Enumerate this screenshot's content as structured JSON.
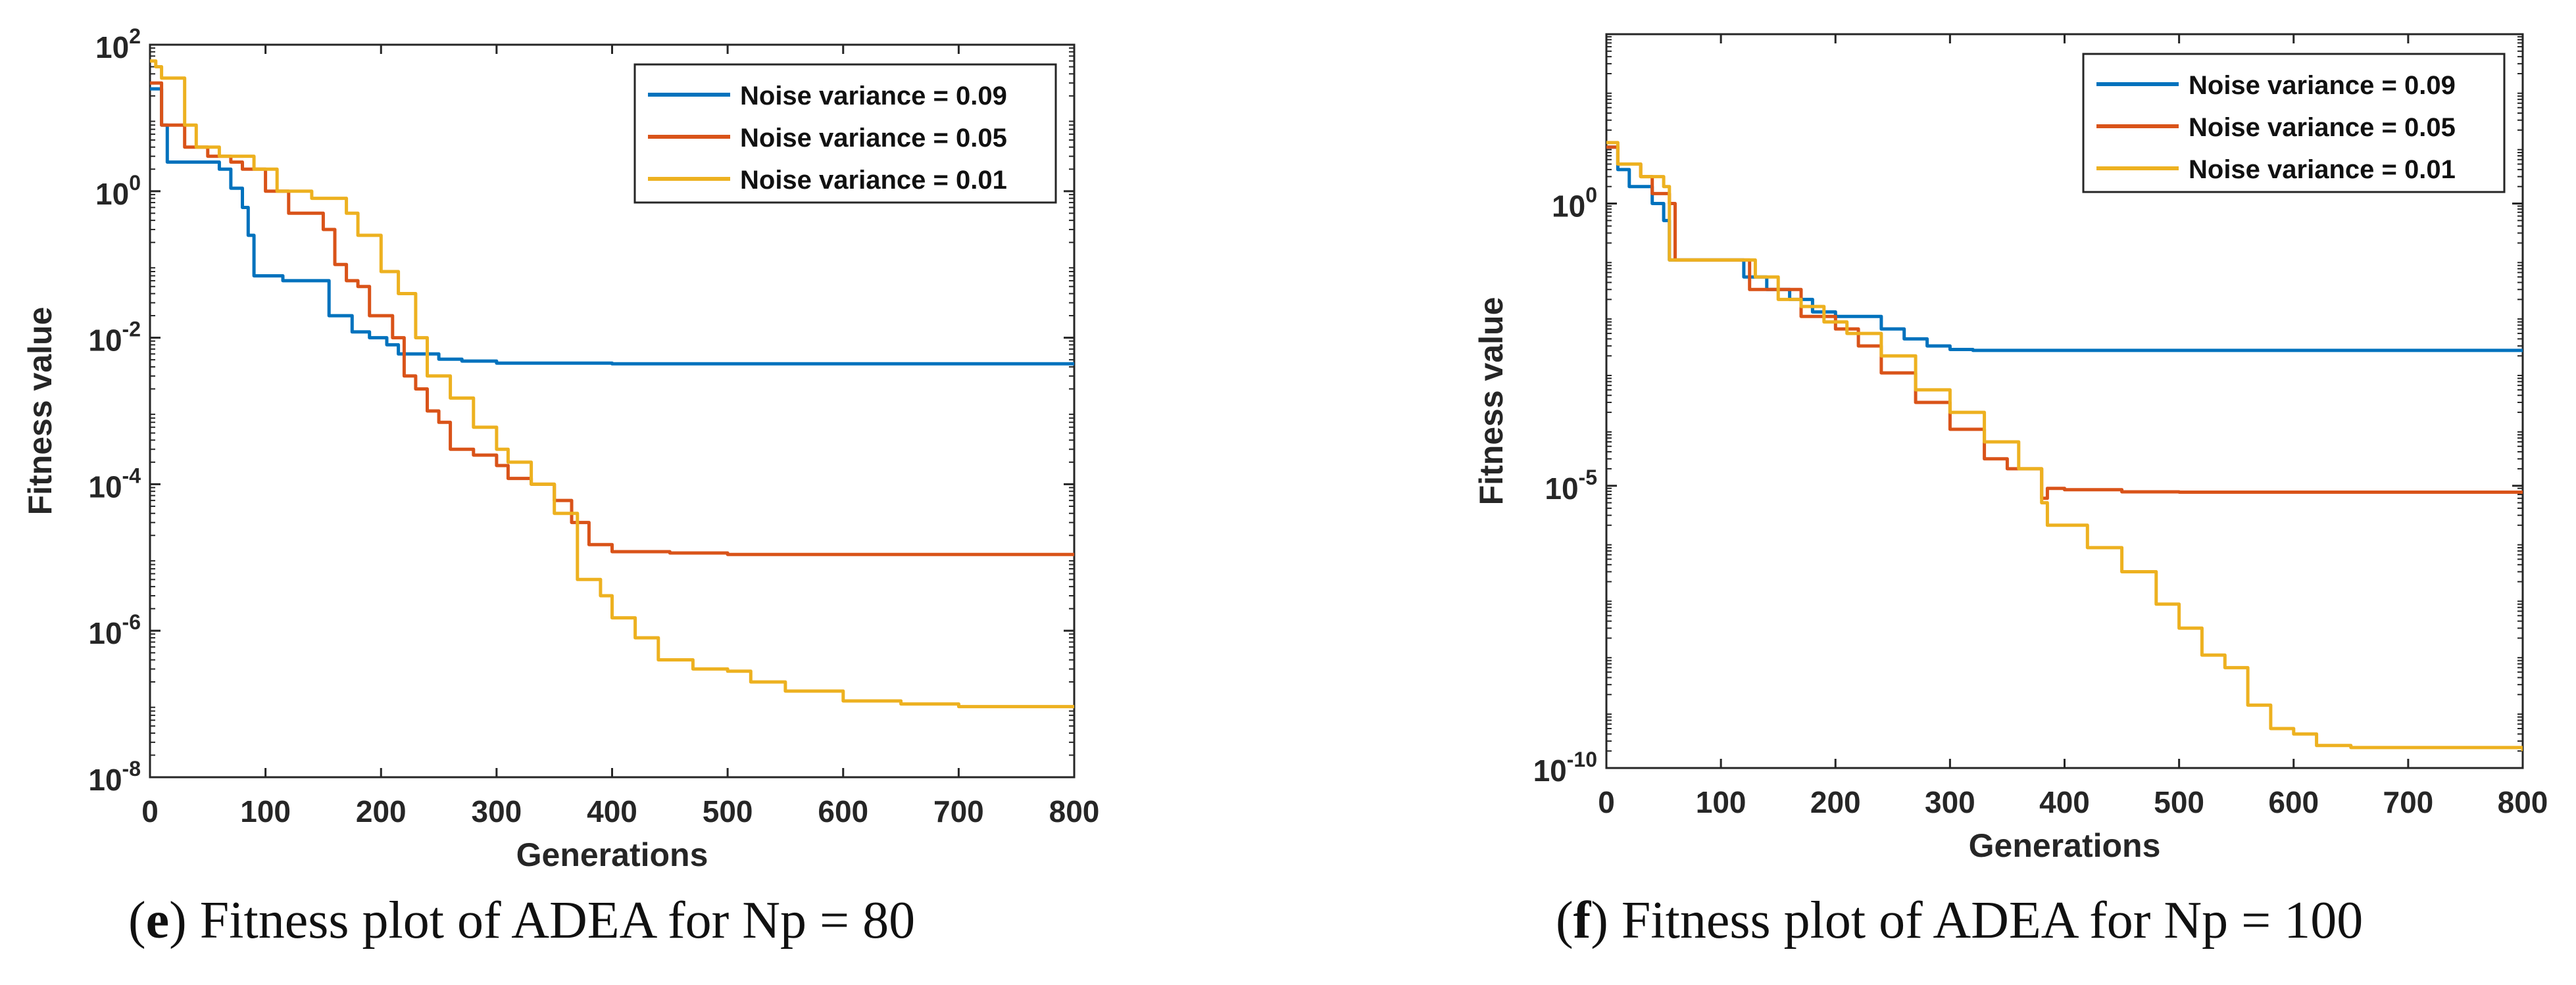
{
  "colors": {
    "s1": "#0072BD",
    "s2": "#D95319",
    "s3": "#EDB120"
  },
  "chart_data": [
    {
      "type": "line",
      "yscale": "log",
      "xlabel": "Generations",
      "ylabel": "Fitness value",
      "xlim": [
        0,
        800
      ],
      "ylim": [
        1e-08,
        100
      ],
      "xticks": [
        "0",
        "100",
        "200",
        "300",
        "400",
        "500",
        "600",
        "700",
        "800"
      ],
      "yticks": [
        {
          "base": "10",
          "exp": "2"
        },
        {
          "base": "10",
          "exp": "0"
        },
        {
          "base": "10",
          "exp": "-2"
        },
        {
          "base": "10",
          "exp": "-4"
        },
        {
          "base": "10",
          "exp": "-6"
        },
        {
          "base": "10",
          "exp": "-8"
        }
      ],
      "legend_position": "top-right",
      "series": [
        {
          "name": "Noise variance = 0.09",
          "color": "#0072BD",
          "points": [
            [
              0,
              25
            ],
            [
              5,
              25
            ],
            [
              10,
              8
            ],
            [
              15,
              2.5
            ],
            [
              60,
              2
            ],
            [
              70,
              1.1
            ],
            [
              80,
              0.6
            ],
            [
              85,
              0.25
            ],
            [
              90,
              0.07
            ],
            [
              110,
              0.07
            ],
            [
              115,
              0.06
            ],
            [
              150,
              0.06
            ],
            [
              155,
              0.02
            ],
            [
              170,
              0.02
            ],
            [
              175,
              0.012
            ],
            [
              190,
              0.01
            ],
            [
              205,
              0.008
            ],
            [
              215,
              0.006
            ],
            [
              230,
              0.006
            ],
            [
              250,
              0.0051
            ],
            [
              270,
              0.0048
            ],
            [
              300,
              0.0045
            ],
            [
              400,
              0.0044
            ],
            [
              800,
              0.0044
            ]
          ]
        },
        {
          "name": "Noise variance = 0.05",
          "color": "#D95319",
          "points": [
            [
              0,
              30
            ],
            [
              5,
              30
            ],
            [
              10,
              8
            ],
            [
              30,
              4
            ],
            [
              50,
              3
            ],
            [
              70,
              2.5
            ],
            [
              80,
              2
            ],
            [
              100,
              1
            ],
            [
              120,
              0.5
            ],
            [
              150,
              0.3
            ],
            [
              160,
              0.1
            ],
            [
              170,
              0.06
            ],
            [
              180,
              0.05
            ],
            [
              190,
              0.02
            ],
            [
              210,
              0.01
            ],
            [
              220,
              0.003
            ],
            [
              230,
              0.002
            ],
            [
              240,
              0.001
            ],
            [
              250,
              0.0007
            ],
            [
              260,
              0.0003
            ],
            [
              280,
              0.00025
            ],
            [
              300,
              0.00018
            ],
            [
              310,
              0.00012
            ],
            [
              330,
              0.0001
            ],
            [
              350,
              6e-05
            ],
            [
              365,
              3e-05
            ],
            [
              380,
              1.5e-05
            ],
            [
              400,
              1.2e-05
            ],
            [
              450,
              1.15e-05
            ],
            [
              500,
              1.1e-05
            ],
            [
              800,
              1.1e-05
            ]
          ]
        },
        {
          "name": "Noise variance = 0.01",
          "color": "#EDB120",
          "points": [
            [
              0,
              60
            ],
            [
              5,
              50
            ],
            [
              10,
              35
            ],
            [
              30,
              8
            ],
            [
              40,
              4
            ],
            [
              60,
              3
            ],
            [
              90,
              2
            ],
            [
              110,
              1
            ],
            [
              140,
              0.8
            ],
            [
              160,
              0.8
            ],
            [
              170,
              0.5
            ],
            [
              180,
              0.25
            ],
            [
              200,
              0.08
            ],
            [
              215,
              0.04
            ],
            [
              230,
              0.01
            ],
            [
              240,
              0.003
            ],
            [
              260,
              0.0015
            ],
            [
              280,
              0.0006
            ],
            [
              300,
              0.0003
            ],
            [
              310,
              0.0002
            ],
            [
              330,
              0.0001
            ],
            [
              350,
              4e-05
            ],
            [
              370,
              5e-06
            ],
            [
              390,
              3e-06
            ],
            [
              400,
              1.5e-06
            ],
            [
              420,
              8e-07
            ],
            [
              440,
              4e-07
            ],
            [
              470,
              3e-07
            ],
            [
              500,
              2.8e-07
            ],
            [
              520,
              2e-07
            ],
            [
              550,
              1.5e-07
            ],
            [
              600,
              1.1e-07
            ],
            [
              650,
              1e-07
            ],
            [
              700,
              9.2e-08
            ],
            [
              800,
              9e-08
            ]
          ]
        }
      ]
    },
    {
      "type": "line",
      "yscale": "log",
      "xlabel": "Generations",
      "ylabel": "Fitness value",
      "xlim": [
        0,
        800
      ],
      "ylim": [
        1e-10,
        1000
      ],
      "xticks": [
        "0",
        "100",
        "200",
        "300",
        "400",
        "500",
        "600",
        "700",
        "800"
      ],
      "yticks": [
        {
          "base": "10",
          "exp": "0"
        },
        {
          "base": "10",
          "exp": "-5"
        },
        {
          "base": "10",
          "exp": "-10"
        }
      ],
      "legend_position": "top-right",
      "series": [
        {
          "name": "Noise variance = 0.09",
          "color": "#0072BD",
          "points": [
            [
              0,
              10
            ],
            [
              10,
              4
            ],
            [
              20,
              2
            ],
            [
              40,
              1
            ],
            [
              50,
              0.5
            ],
            [
              55,
              0.1
            ],
            [
              100,
              0.1
            ],
            [
              120,
              0.05
            ],
            [
              140,
              0.03
            ],
            [
              160,
              0.02
            ],
            [
              180,
              0.012
            ],
            [
              200,
              0.01
            ],
            [
              220,
              0.01
            ],
            [
              240,
              0.006
            ],
            [
              260,
              0.004
            ],
            [
              280,
              0.003
            ],
            [
              300,
              0.0026
            ],
            [
              320,
              0.0025
            ],
            [
              800,
              0.0025
            ]
          ]
        },
        {
          "name": "Noise variance = 0.05",
          "color": "#D95319",
          "points": [
            [
              0,
              10
            ],
            [
              10,
              5
            ],
            [
              30,
              3
            ],
            [
              40,
              1.5
            ],
            [
              55,
              1
            ],
            [
              60,
              0.1
            ],
            [
              110,
              0.1
            ],
            [
              125,
              0.03
            ],
            [
              160,
              0.03
            ],
            [
              170,
              0.01
            ],
            [
              200,
              0.006
            ],
            [
              220,
              0.003
            ],
            [
              240,
              0.001
            ],
            [
              270,
              0.0003
            ],
            [
              300,
              0.0001
            ],
            [
              330,
              3e-05
            ],
            [
              350,
              2e-05
            ],
            [
              380,
              6e-06
            ],
            [
              385,
              9e-06
            ],
            [
              400,
              8.5e-06
            ],
            [
              450,
              7.8e-06
            ],
            [
              500,
              7.7e-06
            ],
            [
              800,
              7.7e-06
            ]
          ]
        },
        {
          "name": "Noise variance = 0.01",
          "color": "#EDB120",
          "points": [
            [
              0,
              12
            ],
            [
              10,
              5
            ],
            [
              30,
              3
            ],
            [
              50,
              2
            ],
            [
              55,
              0.1
            ],
            [
              110,
              0.1
            ],
            [
              130,
              0.05
            ],
            [
              150,
              0.02
            ],
            [
              170,
              0.015
            ],
            [
              190,
              0.008
            ],
            [
              210,
              0.005
            ],
            [
              240,
              0.002
            ],
            [
              270,
              0.0005
            ],
            [
              300,
              0.0002
            ],
            [
              330,
              6e-05
            ],
            [
              360,
              2e-05
            ],
            [
              380,
              5e-06
            ],
            [
              385,
              2e-06
            ],
            [
              400,
              2e-06
            ],
            [
              420,
              8e-07
            ],
            [
              450,
              3e-07
            ],
            [
              480,
              8e-08
            ],
            [
              500,
              3e-08
            ],
            [
              520,
              1e-08
            ],
            [
              540,
              6e-09
            ],
            [
              560,
              1.3e-09
            ],
            [
              580,
              5e-10
            ],
            [
              600,
              4e-10
            ],
            [
              620,
              2.5e-10
            ],
            [
              650,
              2.3e-10
            ],
            [
              800,
              2e-10
            ]
          ]
        }
      ]
    }
  ],
  "captions": [
    {
      "letter": "e",
      "text": ") Fitness plot of ADEA for Np = 80",
      "open": "("
    },
    {
      "letter": "f",
      "text": ") Fitness plot of ADEA for Np = 100",
      "open": "("
    }
  ]
}
